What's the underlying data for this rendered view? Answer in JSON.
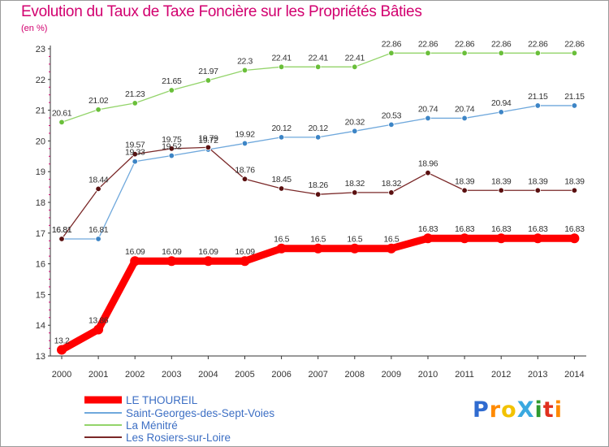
{
  "title": "Evolution du Taux de Taxe Foncière sur les Propriétés Bâties",
  "unit_label": "(en %)",
  "logo": {
    "text": "ProXiti",
    "parts": [
      "P",
      "r",
      "o",
      "X",
      "i",
      "t",
      "i"
    ]
  },
  "chart_data": {
    "type": "line",
    "title": "Evolution du Taux de Taxe Foncière sur les Propriétés Bâties",
    "xlabel": "",
    "ylabel": "(en %)",
    "ylim": [
      13,
      23
    ],
    "yticks": [
      13,
      14,
      15,
      16,
      17,
      18,
      19,
      20,
      21,
      22,
      23
    ],
    "categories": [
      "2000",
      "2001",
      "2002",
      "2003",
      "2004",
      "2005",
      "2006",
      "2007",
      "2008",
      "2009",
      "2010",
      "2011",
      "2012",
      "2013",
      "2014"
    ],
    "grid": false,
    "legend_position": "bottom",
    "series": [
      {
        "name": "LE THOUREIL",
        "color": "#ff0000",
        "marker_color": "#d40000",
        "values": [
          13.2,
          13.86,
          16.09,
          16.09,
          16.09,
          16.09,
          16.5,
          16.5,
          16.5,
          16.5,
          16.83,
          16.83,
          16.83,
          16.83,
          16.83
        ],
        "labels": [
          "13.2",
          "13.86",
          "16.09",
          "16.09",
          "16.09",
          "16.09",
          "16.5",
          "16.5",
          "16.5",
          "16.5",
          "16.83",
          "16.83",
          "16.83",
          "16.83",
          "16.83"
        ]
      },
      {
        "name": "Saint-Georges-des-Sept-Voies",
        "color": "#6fa8dc",
        "marker_color": "#3d85c6",
        "values": [
          16.81,
          16.81,
          19.33,
          19.52,
          19.72,
          19.92,
          20.12,
          20.12,
          20.32,
          20.53,
          20.74,
          20.74,
          20.94,
          21.15,
          21.15
        ],
        "labels": [
          "16.81",
          "16.81",
          "19.33",
          "19.52",
          "19.72",
          "19.92",
          "20.12",
          "20.12",
          "20.32",
          "20.53",
          "20.74",
          "20.74",
          "20.94",
          "21.15",
          "21.15"
        ]
      },
      {
        "name": "La Ménitré",
        "color": "#93d46a",
        "marker_color": "#6abf3a",
        "values": [
          20.61,
          21.02,
          21.23,
          21.65,
          21.97,
          22.3,
          22.41,
          22.41,
          22.41,
          22.86,
          22.86,
          22.86,
          22.86,
          22.86,
          22.86
        ],
        "labels": [
          "20.61",
          "21.02",
          "21.23",
          "21.65",
          "21.97",
          "22.3",
          "22.41",
          "22.41",
          "22.41",
          "22.86",
          "22.86",
          "22.86",
          "22.86",
          "22.86",
          "22.86"
        ]
      },
      {
        "name": "Les Rosiers-sur-Loire",
        "color": "#7a2828",
        "marker_color": "#5a1010",
        "values": [
          16.81,
          18.44,
          19.57,
          19.75,
          19.79,
          18.76,
          18.45,
          18.26,
          18.32,
          18.32,
          18.96,
          18.39,
          18.39,
          18.39,
          18.39
        ],
        "labels": [
          "16.81",
          "18.44",
          "19.57",
          "19.75",
          "19.79",
          "18.76",
          "18.45",
          "18.26",
          "18.32",
          "18.32",
          "18.96",
          "18.39",
          "18.39",
          "18.39",
          "18.39"
        ]
      }
    ]
  }
}
